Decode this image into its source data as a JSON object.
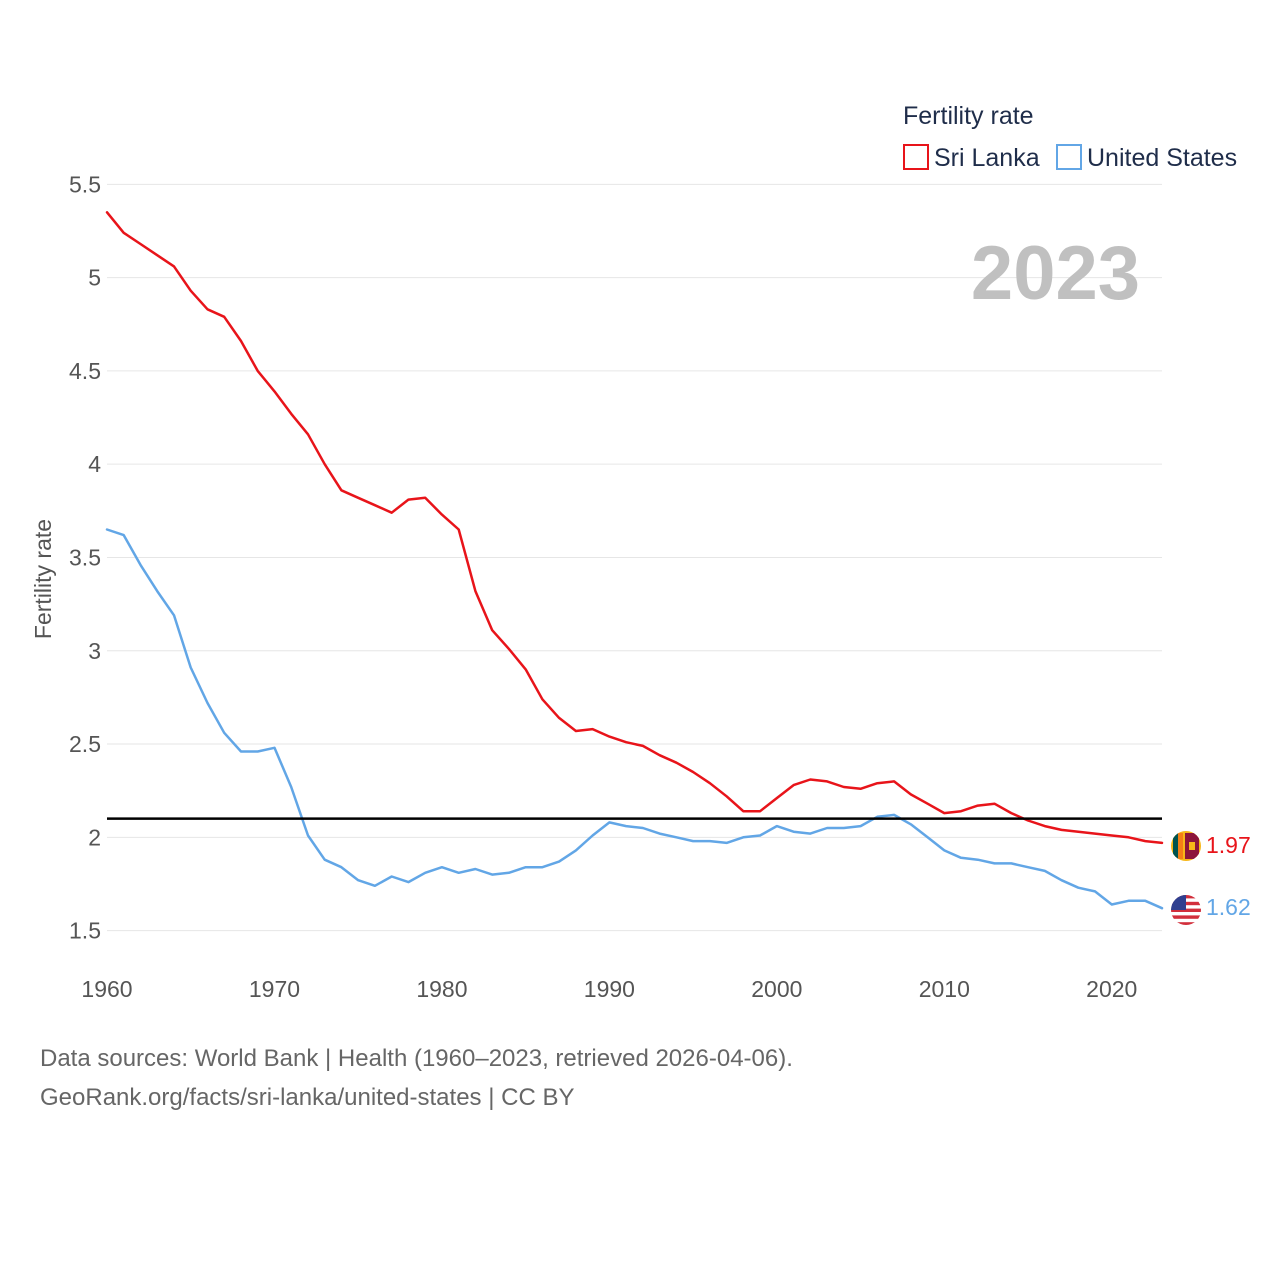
{
  "chart_data": {
    "type": "line",
    "title": "",
    "year_label": "2023",
    "legend_title": "Fertility rate",
    "ylabel": "Fertility rate",
    "xlabel": "",
    "xlim": [
      1960,
      2023
    ],
    "ylim": [
      1.38,
      5.55
    ],
    "y_ticks": [
      "1.5",
      "2",
      "2.5",
      "3",
      "3.5",
      "4",
      "4.5",
      "5",
      "5.5"
    ],
    "x_ticks": [
      "1960",
      "1970",
      "1980",
      "1990",
      "2000",
      "2010",
      "2020"
    ],
    "reference_line": 2.1,
    "x": [
      1960,
      1961,
      1962,
      1963,
      1964,
      1965,
      1966,
      1967,
      1968,
      1969,
      1970,
      1971,
      1972,
      1973,
      1974,
      1975,
      1976,
      1977,
      1978,
      1979,
      1980,
      1981,
      1982,
      1983,
      1984,
      1985,
      1986,
      1987,
      1988,
      1989,
      1990,
      1991,
      1992,
      1993,
      1994,
      1995,
      1996,
      1997,
      1998,
      1999,
      2000,
      2001,
      2002,
      2003,
      2004,
      2005,
      2006,
      2007,
      2008,
      2009,
      2010,
      2011,
      2012,
      2013,
      2014,
      2015,
      2016,
      2017,
      2018,
      2019,
      2020,
      2021,
      2022,
      2023
    ],
    "series": [
      {
        "name": "Sri Lanka",
        "color": "#e8141a",
        "end_label": "1.97",
        "flag": "sri-lanka-flag-icon",
        "values": [
          5.35,
          5.24,
          5.18,
          5.12,
          5.06,
          4.93,
          4.83,
          4.79,
          4.66,
          4.5,
          4.39,
          4.27,
          4.16,
          4.0,
          3.86,
          3.82,
          3.78,
          3.74,
          3.81,
          3.82,
          3.73,
          3.65,
          3.32,
          3.11,
          3.01,
          2.9,
          2.74,
          2.64,
          2.57,
          2.58,
          2.54,
          2.51,
          2.49,
          2.44,
          2.4,
          2.35,
          2.29,
          2.22,
          2.14,
          2.14,
          2.21,
          2.28,
          2.31,
          2.3,
          2.27,
          2.26,
          2.29,
          2.3,
          2.23,
          2.18,
          2.13,
          2.14,
          2.17,
          2.18,
          2.13,
          2.09,
          2.06,
          2.04,
          2.03,
          2.02,
          2.01,
          2.0,
          1.98,
          1.97
        ]
      },
      {
        "name": "United States",
        "color": "#62a6e6",
        "end_label": "1.62",
        "flag": "united-states-flag-icon",
        "values": [
          3.65,
          3.62,
          3.46,
          3.32,
          3.19,
          2.91,
          2.72,
          2.56,
          2.46,
          2.46,
          2.48,
          2.27,
          2.01,
          1.88,
          1.84,
          1.77,
          1.74,
          1.79,
          1.76,
          1.81,
          1.84,
          1.81,
          1.83,
          1.8,
          1.81,
          1.84,
          1.84,
          1.87,
          1.93,
          2.01,
          2.08,
          2.06,
          2.05,
          2.02,
          2.0,
          1.98,
          1.98,
          1.97,
          2.0,
          2.01,
          2.06,
          2.03,
          2.02,
          2.05,
          2.05,
          2.06,
          2.11,
          2.12,
          2.07,
          2.0,
          1.93,
          1.89,
          1.88,
          1.86,
          1.86,
          1.84,
          1.82,
          1.77,
          1.73,
          1.71,
          1.64,
          1.66,
          1.66,
          1.62
        ]
      }
    ]
  },
  "source": {
    "line1": "Data sources: World Bank | Health (1960–2023, retrieved 2026-04-06).",
    "line2": "GeoRank.org/facts/sri-lanka/united-states | CC BY"
  }
}
